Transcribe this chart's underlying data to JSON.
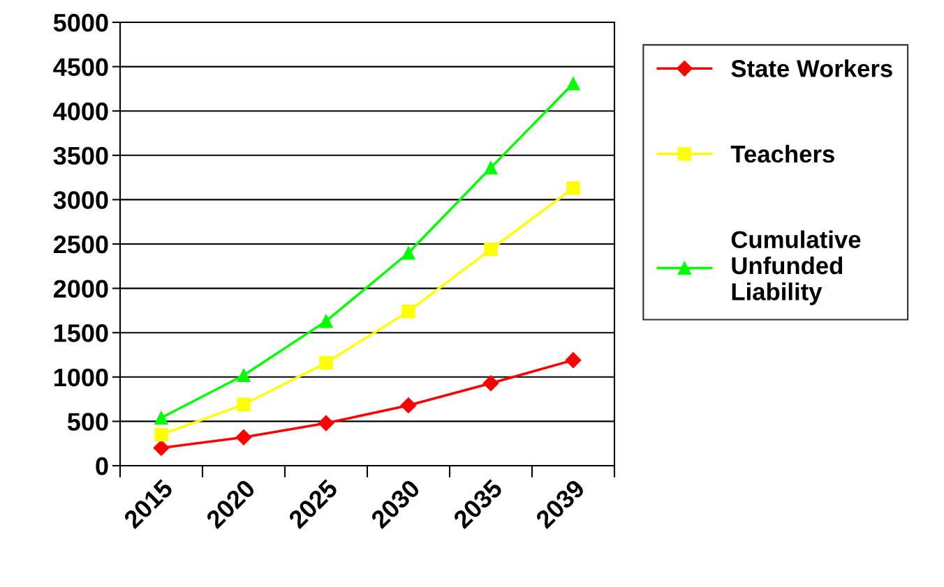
{
  "chart_data": {
    "type": "line",
    "categories": [
      "2015",
      "2020",
      "2025",
      "2030",
      "2035",
      "2039"
    ],
    "series": [
      {
        "name": "State Workers",
        "color": "#ff0000",
        "marker": "diamond",
        "values": [
          200,
          320,
          480,
          680,
          930,
          1190
        ]
      },
      {
        "name": "Teachers",
        "color": "#ffff00",
        "marker": "square",
        "values": [
          350,
          690,
          1160,
          1740,
          2440,
          3130
        ]
      },
      {
        "name": "Cumulative Unfunded Liability",
        "color": "#00ff00",
        "marker": "triangle",
        "values": [
          540,
          1020,
          1630,
          2400,
          3360,
          4310
        ]
      }
    ],
    "ylim": [
      0,
      5000
    ],
    "yticks": [
      0,
      500,
      1000,
      1500,
      2000,
      2500,
      3000,
      3500,
      4000,
      4500,
      5000
    ],
    "grid": "y",
    "legend": "right",
    "line_style": "solid"
  }
}
